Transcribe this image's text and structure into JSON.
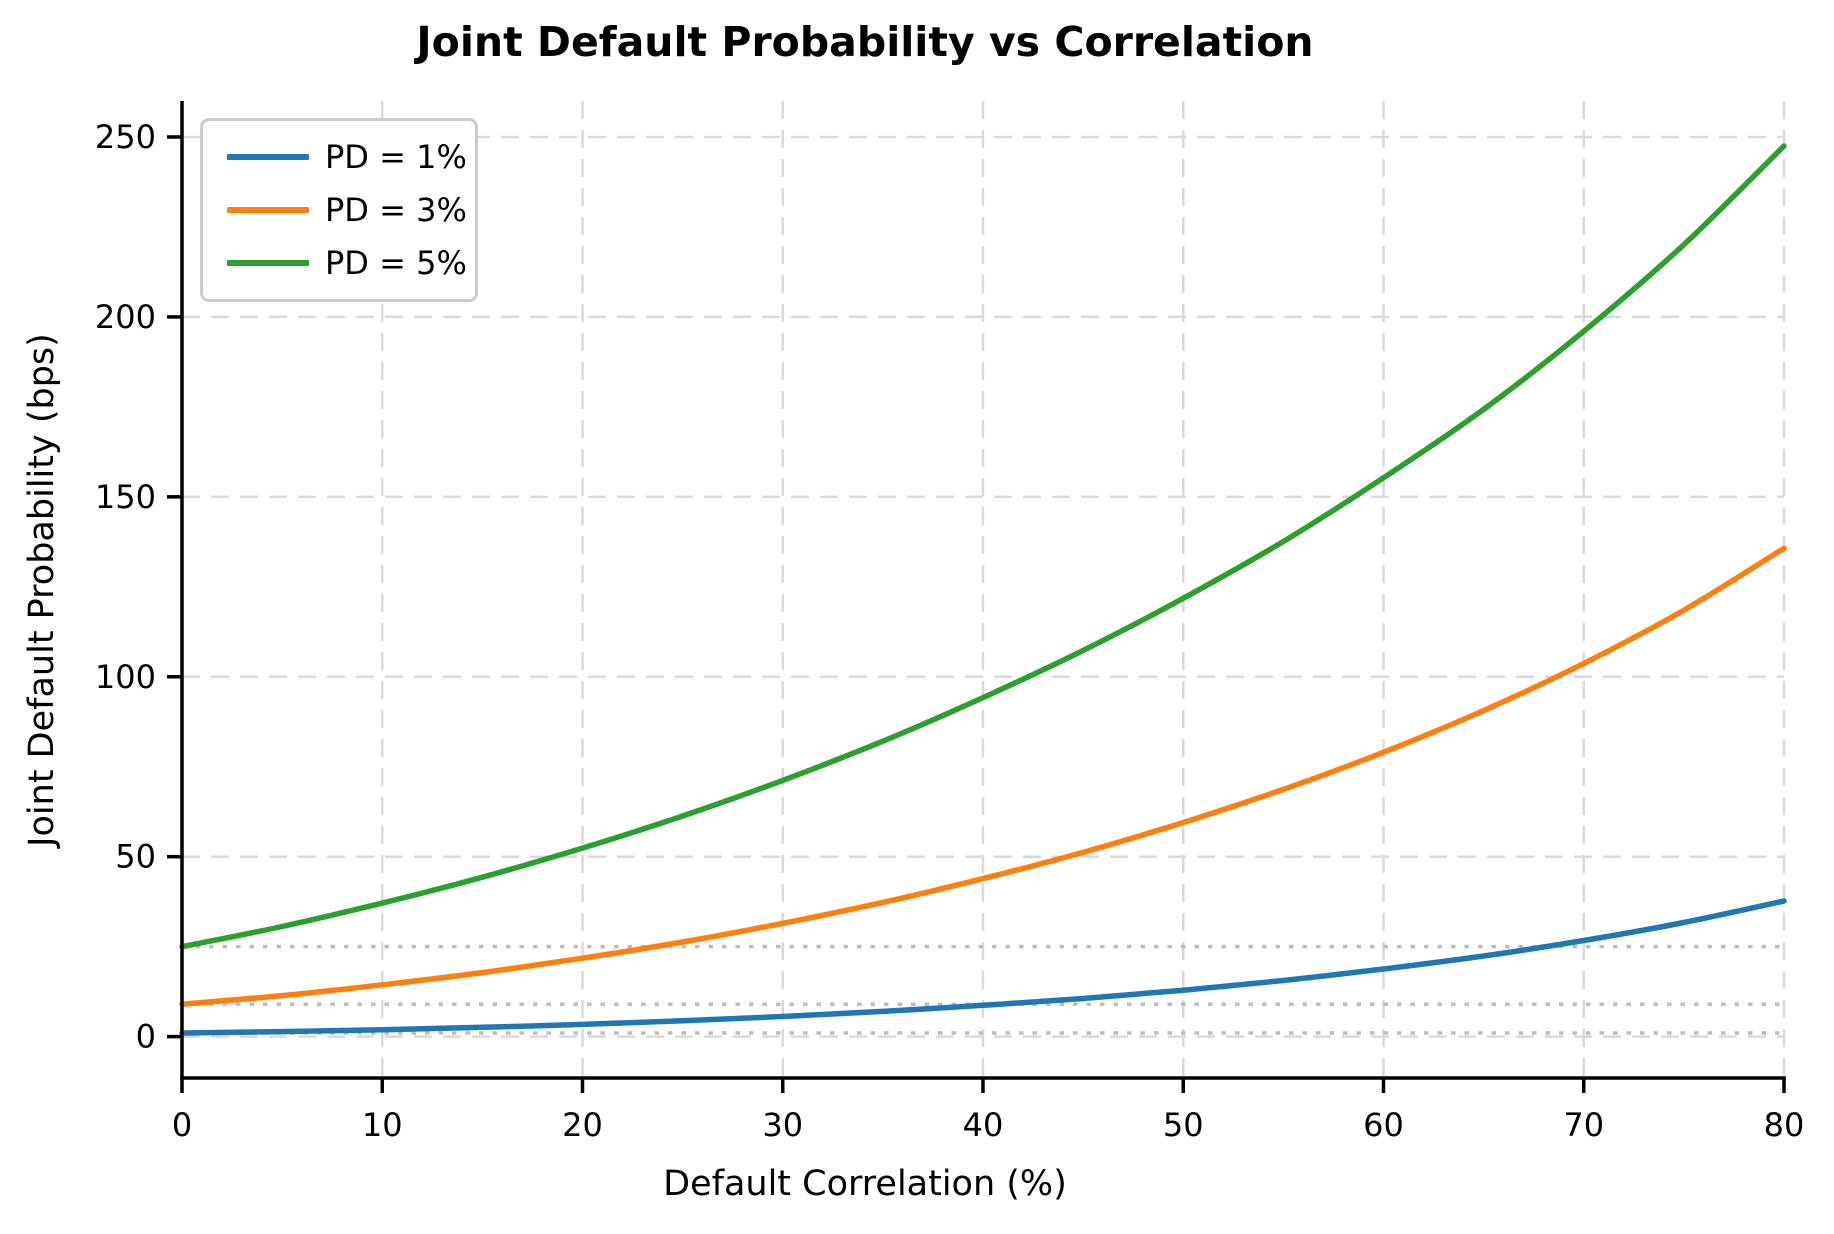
{
  "figure": {
    "title": "Joint Default Probability vs Correlation"
  },
  "chart_data": {
    "type": "line",
    "title": "Joint Default Probability vs Correlation",
    "xlabel": "Default Correlation (%)",
    "ylabel": "Joint Default Probability (bps)",
    "xlim": [
      0,
      80
    ],
    "ylim": [
      -11.5,
      260
    ],
    "x_ticks": [
      0,
      10,
      20,
      30,
      40,
      50,
      60,
      70,
      80
    ],
    "y_ticks": [
      0,
      50,
      100,
      150,
      200,
      250
    ],
    "grid": "dashed",
    "legend_position": "upper-left",
    "x": [
      0,
      5,
      10,
      15,
      20,
      25,
      30,
      35,
      40,
      45,
      50,
      55,
      60,
      65,
      70,
      75,
      80
    ],
    "series": [
      {
        "name": "PD = 1%",
        "color": "#1f77b4",
        "baseline_bps": 1,
        "values": [
          1.0,
          1.4,
          1.9,
          2.6,
          3.4,
          4.4,
          5.6,
          7.0,
          8.7,
          10.6,
          12.9,
          15.6,
          18.8,
          22.4,
          26.7,
          31.7,
          37.7
        ]
      },
      {
        "name": "PD = 3%",
        "color": "#ff7f0e",
        "baseline_bps": 9,
        "values": [
          9.0,
          11.4,
          14.4,
          17.8,
          21.8,
          26.3,
          31.5,
          37.3,
          43.9,
          51.2,
          59.5,
          68.7,
          79.0,
          90.6,
          103.7,
          118.5,
          135.7
        ]
      },
      {
        "name": "PD = 5%",
        "color": "#2ca02c",
        "baseline_bps": 25,
        "values": [
          25.0,
          30.6,
          37.1,
          44.3,
          52.4,
          61.3,
          71.2,
          82.1,
          94.2,
          107.3,
          121.8,
          137.6,
          155.3,
          174.3,
          196.0,
          220.1,
          247.5
        ]
      }
    ],
    "reference_lines_bps": [
      1,
      9,
      25
    ],
    "colors": {
      "grid": "#d9d9d9",
      "reference_dotted": "#bdbdbd",
      "axis": "#000000",
      "background": "#ffffff"
    }
  }
}
